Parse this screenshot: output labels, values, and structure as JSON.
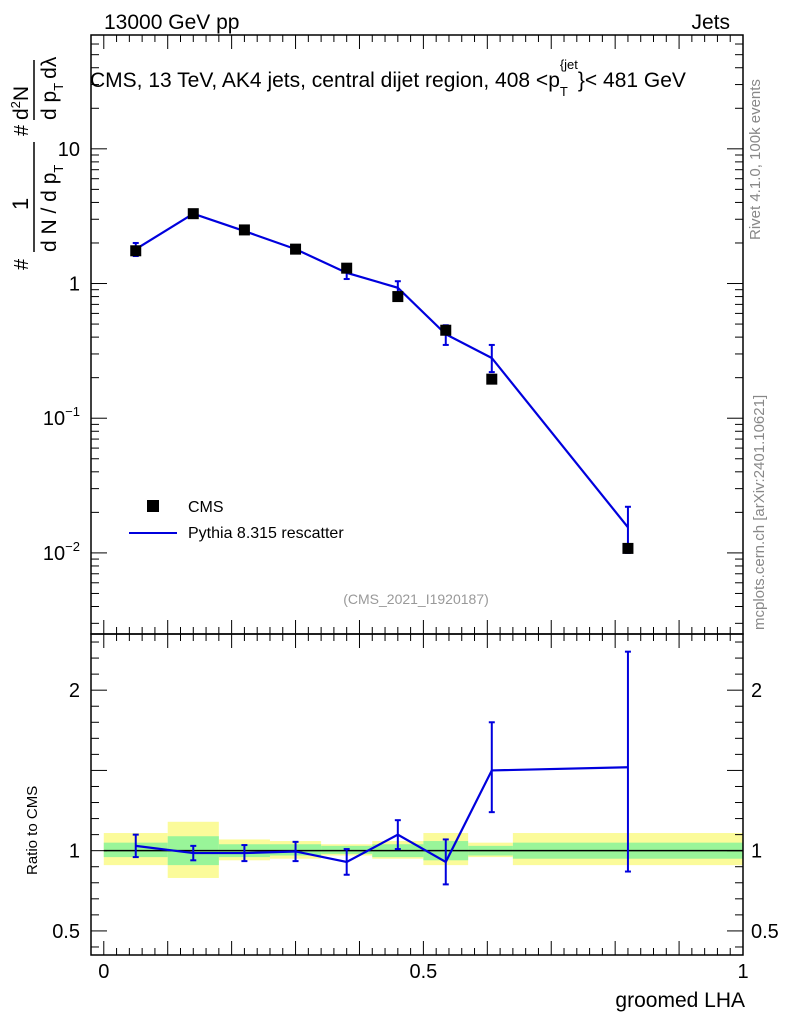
{
  "header": {
    "left": "13000 GeV pp",
    "right": "Jets"
  },
  "side_labels": {
    "rivet": "Rivet 4.1.0,  100k events",
    "source": "mcplots.cern.ch [arXiv:2401.10621]"
  },
  "colors": {
    "data": "#000000",
    "mc": "#0000dd",
    "band_inner": "#99f599",
    "band_outer": "#fbfb9a"
  },
  "chart_data": [
    {
      "type": "scatter",
      "panel": "main",
      "title": "CMS, 13 TeV, AK4 jets, central dijet region, 408 <p_T^{jet}< 481 GeV",
      "title_parts": {
        "prefix": "CMS, 13 TeV, AK4 jets, central dijet region, 408 <p",
        "sub": "T",
        "sup": "{jet",
        "suffix": "}< 481 GeV"
      },
      "ylabel": {
        "hash1": "#",
        "one": "1",
        "den": "d N / d p",
        "den_sub": "T",
        "hash2": "#",
        "num": "d",
        "num_sup": "2",
        "num_n": "N",
        "den2": "d p",
        "den2_sub": "T",
        "dl": "dλ"
      },
      "yscale": "log",
      "ylim": [
        0.0025,
        70
      ],
      "xlim": [
        -0.02,
        1.0
      ],
      "yticks": [
        {
          "value": 10,
          "base": "10",
          "exp": ""
        },
        {
          "value": 1,
          "base": "1",
          "exp": ""
        },
        {
          "value": 0.1,
          "base": "10",
          "exp": "−1"
        },
        {
          "value": 0.01,
          "base": "10",
          "exp": "−2"
        }
      ],
      "watermark": "(CMS_2021_I1920187)",
      "legend": [
        {
          "name": "CMS",
          "marker": "square"
        },
        {
          "name": "Pythia 8.315 rescatter",
          "marker": "line"
        }
      ],
      "series": [
        {
          "name": "CMS",
          "x": [
            0.05,
            0.14,
            0.22,
            0.3,
            0.38,
            0.46,
            0.535,
            0.607,
            0.82
          ],
          "y": [
            1.75,
            3.3,
            2.5,
            1.8,
            1.3,
            0.8,
            0.45,
            0.195,
            0.0108
          ]
        },
        {
          "name": "Pythia 8.315 rescatter",
          "x": [
            0.05,
            0.14,
            0.22,
            0.3,
            0.38,
            0.46,
            0.535,
            0.607,
            0.82
          ],
          "y": [
            1.8,
            3.3,
            2.45,
            1.8,
            1.2,
            0.93,
            0.42,
            0.28,
            0.0155
          ],
          "yerr_low": [
            0.2,
            0.13,
            0.1,
            0.1,
            0.12,
            0.11,
            0.07,
            0.06,
            0.0055
          ],
          "yerr_high": [
            0.2,
            0.13,
            0.1,
            0.1,
            0.12,
            0.11,
            0.07,
            0.07,
            0.0065
          ]
        }
      ]
    },
    {
      "type": "line",
      "panel": "ratio",
      "ylabel": "Ratio to CMS",
      "xlabel": "groomed LHA",
      "ylim": [
        0.35,
        2.35
      ],
      "xlim": [
        -0.02,
        1.0
      ],
      "xticks": [
        {
          "value": 0,
          "label": "0"
        },
        {
          "value": 0.5,
          "label": "0.5"
        },
        {
          "value": 1,
          "label": "1"
        }
      ],
      "yticks": [
        {
          "value": 2,
          "label": "2"
        },
        {
          "value": 1,
          "label": "1"
        },
        {
          "value": 0.5,
          "label": "0.5"
        }
      ],
      "bins": [
        {
          "lo": 0.0,
          "hi": 0.1,
          "inner": [
            0.96,
            1.05
          ],
          "outer": [
            0.91,
            1.11
          ]
        },
        {
          "lo": 0.1,
          "hi": 0.18,
          "inner": [
            0.91,
            1.09
          ],
          "outer": [
            0.83,
            1.18
          ]
        },
        {
          "lo": 0.18,
          "hi": 0.26,
          "inner": [
            0.96,
            1.04
          ],
          "outer": [
            0.94,
            1.07
          ]
        },
        {
          "lo": 0.26,
          "hi": 0.34,
          "inner": [
            0.97,
            1.04
          ],
          "outer": [
            0.95,
            1.06
          ]
        },
        {
          "lo": 0.34,
          "hi": 0.42,
          "inner": [
            0.98,
            1.03
          ],
          "outer": [
            0.97,
            1.04
          ]
        },
        {
          "lo": 0.42,
          "hi": 0.5,
          "inner": [
            0.96,
            1.04
          ],
          "outer": [
            0.95,
            1.06
          ]
        },
        {
          "lo": 0.5,
          "hi": 0.57,
          "inner": [
            0.94,
            1.06
          ],
          "outer": [
            0.91,
            1.11
          ]
        },
        {
          "lo": 0.57,
          "hi": 0.64,
          "inner": [
            0.97,
            1.03
          ],
          "outer": [
            0.96,
            1.05
          ]
        },
        {
          "lo": 0.64,
          "hi": 1.0,
          "inner": [
            0.95,
            1.05
          ],
          "outer": [
            0.91,
            1.11
          ]
        }
      ],
      "series": [
        {
          "name": "Pythia 8.315 rescatter",
          "x": [
            0.05,
            0.14,
            0.22,
            0.3,
            0.38,
            0.46,
            0.535,
            0.607,
            0.82
          ],
          "y": [
            1.03,
            0.985,
            0.985,
            0.995,
            0.93,
            1.1,
            0.93,
            1.5,
            1.52
          ],
          "yerr_low": [
            0.07,
            0.045,
            0.05,
            0.06,
            0.08,
            0.09,
            0.14,
            0.26,
            0.65
          ],
          "yerr_high": [
            0.07,
            0.045,
            0.05,
            0.06,
            0.08,
            0.09,
            0.14,
            0.3,
            0.72
          ]
        }
      ]
    }
  ]
}
